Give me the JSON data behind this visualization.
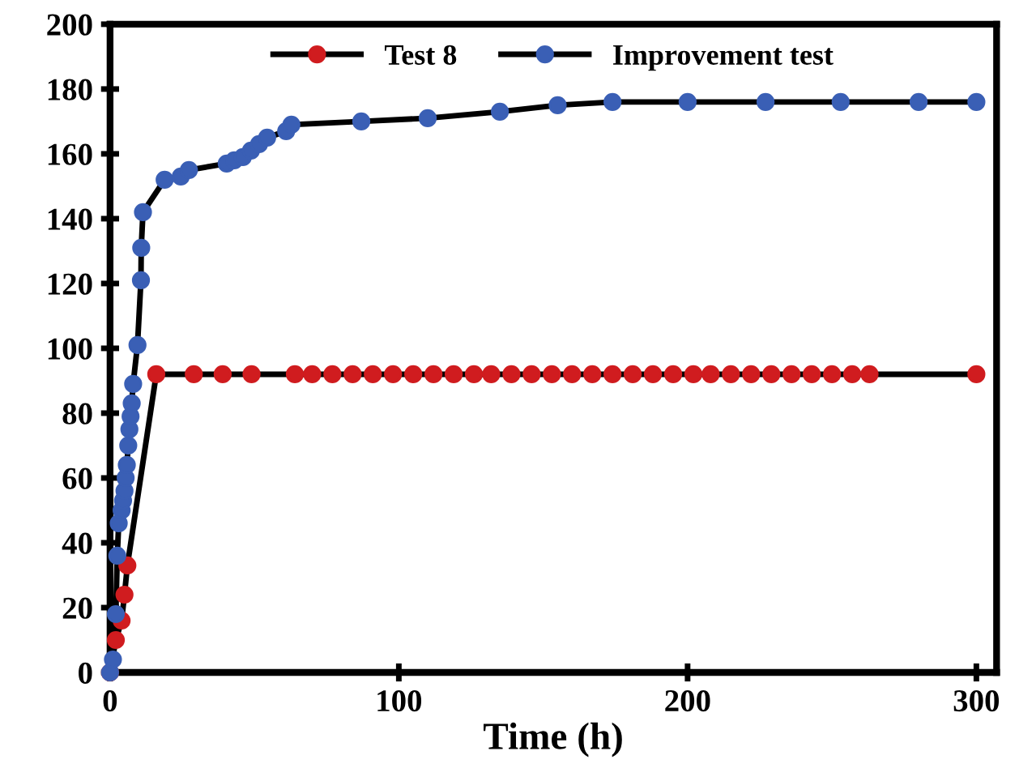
{
  "chart_data": {
    "type": "line",
    "xlabel": "Time (h)",
    "xlim": [
      0,
      307
    ],
    "ylim": [
      0,
      200
    ],
    "xticks": [
      0,
      100,
      200,
      300
    ],
    "yticks": [
      0,
      20,
      40,
      60,
      80,
      100,
      120,
      140,
      160,
      180,
      200
    ],
    "grid": false,
    "legend": "top",
    "marker": "circle",
    "line_style": "solid",
    "series": [
      {
        "name": "Test 8",
        "color": "#d01c1f",
        "x": [
          0,
          2,
          4,
          5,
          6,
          16,
          29,
          39,
          49,
          64,
          70,
          77,
          84,
          91,
          98,
          105,
          112,
          119,
          126,
          132,
          139,
          146,
          153,
          160,
          167,
          174,
          181,
          188,
          195,
          202,
          208,
          215,
          222,
          229,
          236,
          243,
          250,
          257,
          263,
          300
        ],
        "values": [
          0,
          10,
          16,
          24,
          33,
          92,
          92,
          92,
          92,
          92,
          92,
          92,
          92,
          92,
          92,
          92,
          92,
          92,
          92,
          92,
          92,
          92,
          92,
          92,
          92,
          92,
          92,
          92,
          92,
          92,
          92,
          92,
          92,
          92,
          92,
          92,
          92,
          92,
          92,
          92
        ]
      },
      {
        "name": "Improvement test",
        "color": "#3a5fb5",
        "x": [
          0,
          1,
          2,
          2.5,
          3,
          4,
          4.5,
          5,
          5.4,
          5.8,
          6.3,
          6.7,
          7.1,
          7.5,
          8,
          9.5,
          10.7,
          10.8,
          11.4,
          18.9,
          24.5,
          27.3,
          40.4,
          43,
          46,
          48.8,
          51.6,
          54.4,
          61,
          62.8,
          87,
          110,
          135,
          155,
          174,
          200,
          227,
          253,
          280,
          300
        ],
        "values": [
          0,
          4,
          18,
          36,
          46,
          50,
          53,
          56,
          60,
          64,
          70,
          75,
          79,
          83,
          89,
          101,
          121,
          131,
          142,
          152,
          153,
          155,
          157,
          158,
          159,
          161,
          163,
          165,
          167,
          169,
          170,
          171,
          173,
          175,
          176,
          176,
          176,
          176,
          176,
          176
        ]
      }
    ]
  }
}
